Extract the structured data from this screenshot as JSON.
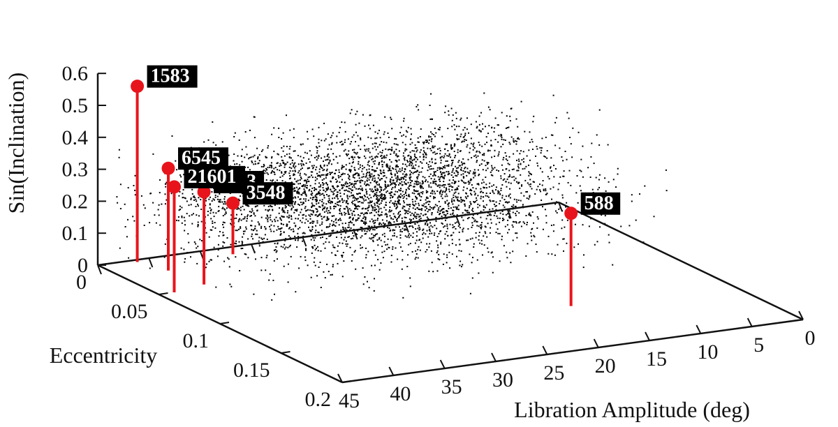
{
  "chart_data": {
    "type": "scatter",
    "projection": "3d",
    "title": "",
    "axes": {
      "x": {
        "label": "Libration Amplitude (deg)",
        "range": [
          0,
          45
        ],
        "reversed": true,
        "ticks": [
          0,
          5,
          10,
          15,
          20,
          25,
          30,
          35,
          40,
          45
        ],
        "tick_labels": [
          "0",
          "5",
          "10",
          "15",
          "20",
          "25",
          "30",
          "35",
          "40",
          "45"
        ]
      },
      "y": {
        "label": "Eccentricity",
        "range": [
          0,
          0.2
        ],
        "ticks": [
          0,
          0.05,
          0.1,
          0.15,
          0.2
        ],
        "tick_labels": [
          "0",
          "0.05",
          "0.1",
          "0.15",
          "0.2"
        ]
      },
      "z": {
        "label": "Sin(Inclination)",
        "range": [
          0,
          0.6
        ],
        "ticks": [
          0,
          0.1,
          0.2,
          0.3,
          0.4,
          0.5,
          0.6
        ],
        "tick_labels": [
          "0",
          "0.1",
          "0.2",
          "0.3",
          "0.4",
          "0.5",
          "0.6"
        ]
      }
    },
    "background_population": {
      "marker": "dot",
      "color": "#000000",
      "count": 4000,
      "libration_amplitude_range": [
        2,
        44
      ],
      "eccentricity_range": [
        0.0,
        0.16
      ],
      "sin_inclination_range": [
        0.05,
        0.45
      ]
    },
    "highlighted": [
      {
        "label": "1583",
        "libration_amplitude": 41.5,
        "eccentricity": 0.003,
        "sin_inclination": 0.55
      },
      {
        "label": "6545",
        "libration_amplitude": 40.5,
        "eccentricity": 0.02,
        "sin_inclination": 0.32
      },
      {
        "label": "4543",
        "libration_amplitude": 40.0,
        "eccentricity": 0.045,
        "sin_inclination": 0.29
      },
      {
        "label": "21601",
        "libration_amplitude": 43.5,
        "eccentricity": 0.05,
        "sin_inclination": 0.33
      },
      {
        "label": "3548",
        "libration_amplitude": 33.0,
        "eccentricity": 0.01,
        "sin_inclination": 0.16
      },
      {
        "label": "588",
        "libration_amplitude": 15.5,
        "eccentricity": 0.14,
        "sin_inclination": 0.29
      }
    ],
    "highlight_color": "#e8141b",
    "label_background": "#000000",
    "label_color": "#ffffff",
    "grid": false,
    "legend": "none"
  }
}
